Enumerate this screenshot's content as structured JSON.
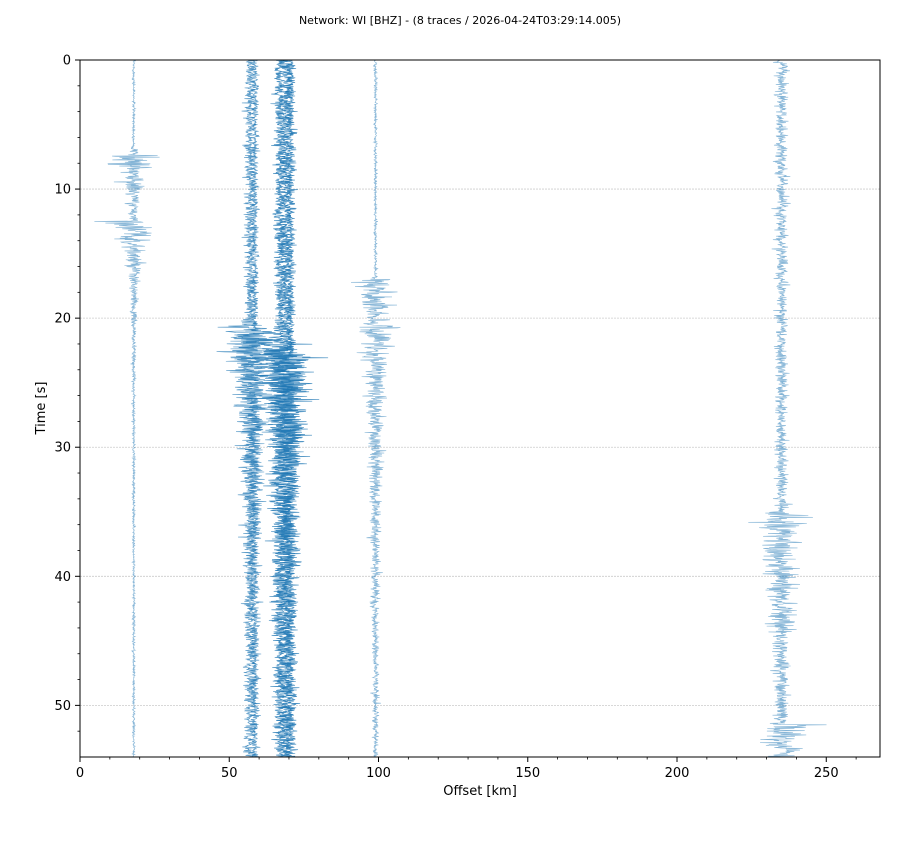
{
  "chart_data": {
    "type": "line",
    "title": "Network: WI [BHZ] - (8 traces / 2026-04-24T03:29:14.005)",
    "xlabel": "Offset [km]",
    "ylabel": "Time [s]",
    "xlim": [
      0,
      268
    ],
    "ylim": [
      54,
      0
    ],
    "y_inverted": true,
    "x_ticks": [
      0,
      50,
      100,
      150,
      200,
      250
    ],
    "y_ticks": [
      0,
      10,
      20,
      30,
      40,
      50
    ],
    "grid": "horizontal-at-y-ticks",
    "trace_color": "#1f77b4",
    "duration_s": 54,
    "series": [
      {
        "offset_km": 18,
        "amp_noise": 0.7,
        "events": [
          {
            "t": 7.3,
            "amp": 17,
            "decay": 2.0
          },
          {
            "t": 12.5,
            "amp": 11,
            "decay": 3.0
          }
        ],
        "alpha": 0.55
      },
      {
        "offset_km": 57,
        "amp_noise": 3.0,
        "events": [
          {
            "t": 20.5,
            "amp": 14,
            "decay": 6.0
          }
        ],
        "alpha": 0.75
      },
      {
        "offset_km": 58.5,
        "amp_noise": 2.0,
        "events": [
          {
            "t": 21.0,
            "amp": 10,
            "decay": 8.0
          }
        ],
        "alpha": 0.75
      },
      {
        "offset_km": 67,
        "amp_noise": 3.2,
        "events": [
          {
            "t": 22.0,
            "amp": 9,
            "decay": 10.0
          }
        ],
        "alpha": 0.85
      },
      {
        "offset_km": 69,
        "amp_noise": 3.5,
        "events": [
          {
            "t": 22.5,
            "amp": 12,
            "decay": 10.0
          }
        ],
        "alpha": 0.85
      },
      {
        "offset_km": 70.5,
        "amp_noise": 2.6,
        "events": [
          {
            "t": 23.0,
            "amp": 9,
            "decay": 10.0
          }
        ],
        "alpha": 0.85
      },
      {
        "offset_km": 99,
        "amp_noise": 0.8,
        "events": [
          {
            "t": 17.0,
            "amp": 14,
            "decay": 3.0
          },
          {
            "t": 20.5,
            "amp": 6,
            "decay": 15.0
          }
        ],
        "alpha": 0.55
      },
      {
        "offset_km": 235,
        "amp_noise": 3.2,
        "events": [
          {
            "t": 35.0,
            "amp": 12,
            "decay": 6.0
          },
          {
            "t": 51.5,
            "amp": 12,
            "decay": 2.5
          }
        ],
        "alpha": 0.55
      }
    ]
  }
}
